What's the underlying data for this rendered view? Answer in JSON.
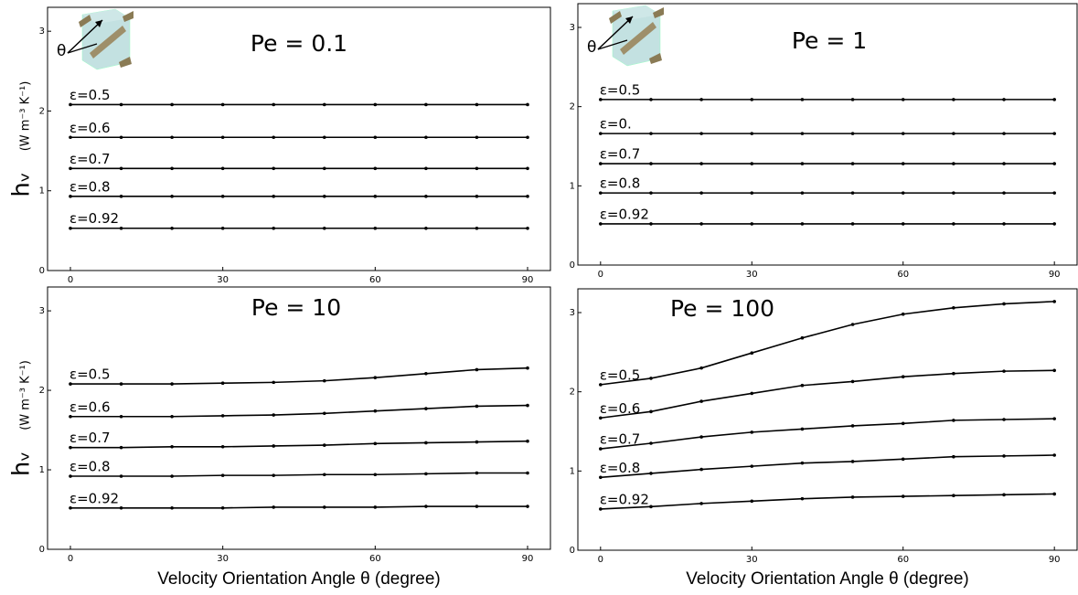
{
  "chart_data": [
    {
      "type": "line",
      "title": "Pe = 0.1",
      "annotation": "θ",
      "ylabel": "hᵥ",
      "ylabel_units": "(W m⁻³ K⁻¹)",
      "x": [
        0,
        10,
        20,
        30,
        40,
        50,
        60,
        70,
        80,
        90
      ],
      "xlim": [
        -4.5,
        94.5
      ],
      "ylim": [
        0,
        3.3
      ],
      "xticks": [
        0,
        30,
        60,
        90
      ],
      "yticks": [
        0,
        1,
        2,
        3
      ],
      "series": [
        {
          "name": "ε=0.5",
          "color": "#000000",
          "values": [
            2.08,
            2.08,
            2.08,
            2.08,
            2.08,
            2.08,
            2.08,
            2.08,
            2.08,
            2.08
          ]
        },
        {
          "name": "ε=0.6",
          "color": "#000000",
          "values": [
            1.67,
            1.67,
            1.67,
            1.67,
            1.67,
            1.67,
            1.67,
            1.67,
            1.67,
            1.67
          ]
        },
        {
          "name": "ε=0.7",
          "color": "#000000",
          "values": [
            1.28,
            1.28,
            1.28,
            1.28,
            1.28,
            1.28,
            1.28,
            1.28,
            1.28,
            1.28
          ]
        },
        {
          "name": "ε=0.8",
          "color": "#000000",
          "values": [
            0.93,
            0.93,
            0.93,
            0.93,
            0.93,
            0.93,
            0.93,
            0.93,
            0.93,
            0.93
          ]
        },
        {
          "name": "ε=0.92",
          "color": "#000000",
          "values": [
            0.53,
            0.53,
            0.53,
            0.53,
            0.53,
            0.53,
            0.53,
            0.53,
            0.53,
            0.53
          ]
        }
      ]
    },
    {
      "type": "line",
      "title": "Pe = 1",
      "annotation": "θ",
      "x": [
        0,
        10,
        20,
        30,
        40,
        50,
        60,
        70,
        80,
        90
      ],
      "xlim": [
        -4.5,
        94.5
      ],
      "ylim": [
        0,
        3.3
      ],
      "xticks": [
        0,
        30,
        60,
        90
      ],
      "yticks": [
        0,
        1,
        2,
        3
      ],
      "series": [
        {
          "name": "ε=0.5",
          "color": "#000000",
          "values": [
            2.09,
            2.09,
            2.09,
            2.09,
            2.09,
            2.09,
            2.09,
            2.09,
            2.09,
            2.09
          ]
        },
        {
          "name": "ε=0.",
          "color": "#000000",
          "values": [
            1.66,
            1.66,
            1.66,
            1.66,
            1.66,
            1.66,
            1.66,
            1.66,
            1.66,
            1.66
          ]
        },
        {
          "name": "ε=0.7",
          "color": "#000000",
          "values": [
            1.28,
            1.28,
            1.28,
            1.28,
            1.28,
            1.28,
            1.28,
            1.28,
            1.28,
            1.28
          ]
        },
        {
          "name": "ε=0.8",
          "color": "#000000",
          "values": [
            0.91,
            0.91,
            0.91,
            0.91,
            0.91,
            0.91,
            0.91,
            0.91,
            0.91,
            0.91
          ]
        },
        {
          "name": "ε=0.92",
          "color": "#000000",
          "values": [
            0.52,
            0.52,
            0.52,
            0.52,
            0.52,
            0.52,
            0.52,
            0.52,
            0.52,
            0.52
          ]
        }
      ]
    },
    {
      "type": "line",
      "title": "Pe = 10",
      "ylabel": "hᵥ",
      "ylabel_units": "(W m⁻³ K⁻¹)",
      "xlabel": "Velocity Orientation Angle θ (degree)",
      "x": [
        0,
        10,
        20,
        30,
        40,
        50,
        60,
        70,
        80,
        90
      ],
      "xlim": [
        -4.5,
        94.5
      ],
      "ylim": [
        0,
        3.3
      ],
      "xticks": [
        0,
        30,
        60,
        90
      ],
      "yticks": [
        0,
        1,
        2,
        3
      ],
      "series": [
        {
          "name": "ε=0.5",
          "color": "#000000",
          "values": [
            2.08,
            2.08,
            2.08,
            2.09,
            2.1,
            2.12,
            2.16,
            2.21,
            2.26,
            2.28
          ]
        },
        {
          "name": "ε=0.6",
          "color": "#000000",
          "values": [
            1.67,
            1.67,
            1.67,
            1.68,
            1.69,
            1.71,
            1.74,
            1.77,
            1.8,
            1.81
          ]
        },
        {
          "name": "ε=0.7",
          "color": "#000000",
          "values": [
            1.28,
            1.28,
            1.29,
            1.29,
            1.3,
            1.31,
            1.33,
            1.34,
            1.35,
            1.36
          ]
        },
        {
          "name": "ε=0.8",
          "color": "#000000",
          "values": [
            0.92,
            0.92,
            0.92,
            0.93,
            0.93,
            0.94,
            0.94,
            0.95,
            0.96,
            0.96
          ]
        },
        {
          "name": "ε=0.92",
          "color": "#000000",
          "values": [
            0.52,
            0.52,
            0.52,
            0.52,
            0.53,
            0.53,
            0.53,
            0.54,
            0.54,
            0.54
          ]
        }
      ]
    },
    {
      "type": "line",
      "title": "Pe = 100",
      "xlabel": "Velocity Orientation Angle θ (degree)",
      "x": [
        0,
        10,
        20,
        30,
        40,
        50,
        60,
        70,
        80,
        90
      ],
      "xlim": [
        -4.5,
        94.5
      ],
      "ylim": [
        0,
        3.3
      ],
      "xticks": [
        0,
        30,
        60,
        90
      ],
      "yticks": [
        0,
        1,
        2,
        3
      ],
      "series": [
        {
          "name": "ε=0.5",
          "color": "#000000",
          "values": [
            2.09,
            2.17,
            2.3,
            2.49,
            2.68,
            2.85,
            2.98,
            3.06,
            3.11,
            3.14
          ]
        },
        {
          "name": "ε=0.6",
          "color": "#000000",
          "values": [
            1.67,
            1.75,
            1.88,
            1.98,
            2.08,
            2.13,
            2.19,
            2.23,
            2.26,
            2.27
          ]
        },
        {
          "name": "ε=0.7",
          "color": "#000000",
          "values": [
            1.28,
            1.35,
            1.43,
            1.49,
            1.53,
            1.57,
            1.6,
            1.64,
            1.65,
            1.66
          ]
        },
        {
          "name": "ε=0.8",
          "color": "#000000",
          "values": [
            0.92,
            0.97,
            1.02,
            1.06,
            1.1,
            1.12,
            1.15,
            1.18,
            1.19,
            1.2
          ]
        },
        {
          "name": "ε=0.92",
          "color": "#000000",
          "values": [
            0.52,
            0.55,
            0.59,
            0.62,
            0.65,
            0.67,
            0.68,
            0.69,
            0.7,
            0.71
          ]
        }
      ]
    }
  ]
}
